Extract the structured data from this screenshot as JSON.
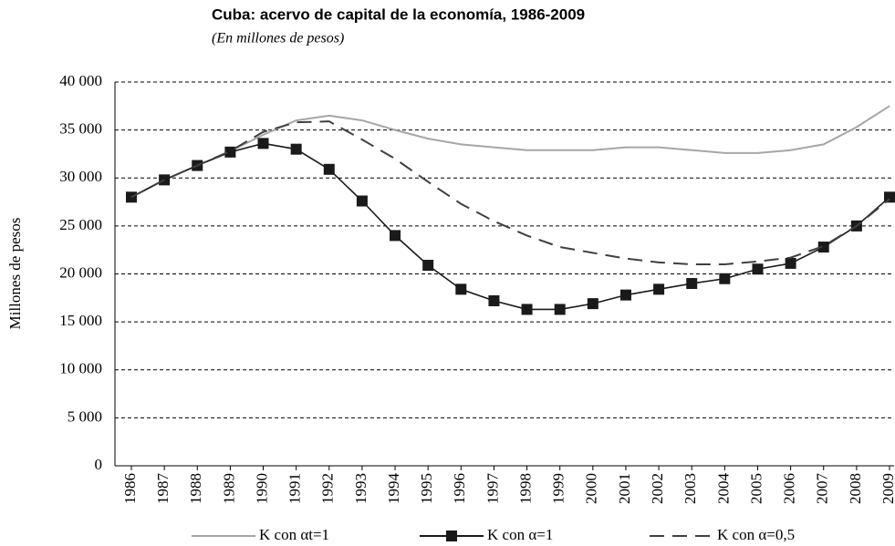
{
  "chart_data": {
    "type": "line",
    "title": "Cuba: acervo de capital de la economía, 1986-2009",
    "subtitle": "(En millones de pesos)",
    "y_label": "Millones de pesos",
    "categories": [
      "1986",
      "1987",
      "1988",
      "1989",
      "1990",
      "1991",
      "1992",
      "1993",
      "1994",
      "1995",
      "1996",
      "1997",
      "1998",
      "1999",
      "2000",
      "2001",
      "2002",
      "2003",
      "2004",
      "2005",
      "2006",
      "2007",
      "2008",
      "2009"
    ],
    "series": [
      {
        "name": "K con αt=1",
        "color": "#a6a6a6",
        "dash": "solid",
        "marker": "none",
        "values": [
          28000,
          29800,
          31300,
          32800,
          34500,
          36000,
          36500,
          36000,
          35000,
          34100,
          33500,
          33200,
          32900,
          32900,
          32900,
          33200,
          33200,
          32900,
          32600,
          32600,
          32900,
          33500,
          35300,
          37500
        ]
      },
      {
        "name": "K con α=1",
        "color": "#1a1a1a",
        "dash": "solid",
        "marker": "square",
        "values": [
          28000,
          29800,
          31300,
          32700,
          33600,
          33000,
          30900,
          27600,
          24000,
          20900,
          18400,
          17200,
          16300,
          16300,
          16900,
          17800,
          18400,
          19000,
          19500,
          20500,
          21100,
          22800,
          25000,
          28000
        ]
      },
      {
        "name": "K con α=0,5",
        "color": "#404040",
        "dash": "dashed",
        "marker": "none",
        "values": [
          28000,
          29800,
          31300,
          32800,
          34800,
          35800,
          35900,
          34000,
          32000,
          29600,
          27300,
          25500,
          24000,
          22800,
          22200,
          21600,
          21200,
          21000,
          21000,
          21300,
          21700,
          22900,
          25000,
          27800
        ]
      }
    ],
    "ylim": [
      0,
      40000
    ],
    "yticks": [
      0,
      {
        "value": 5000,
        "label": "5 000"
      },
      {
        "value": 10000,
        "label": "10 000"
      },
      {
        "value": 15000,
        "label": "15 000"
      },
      {
        "value": 20000,
        "label": "20 000"
      },
      {
        "value": 25000,
        "label": "25 000"
      },
      {
        "value": 30000,
        "label": "30 000"
      },
      {
        "value": 35000,
        "label": "35 000"
      },
      {
        "value": 40000,
        "label": "40 000"
      }
    ],
    "grid": true,
    "legend": "bottom"
  }
}
